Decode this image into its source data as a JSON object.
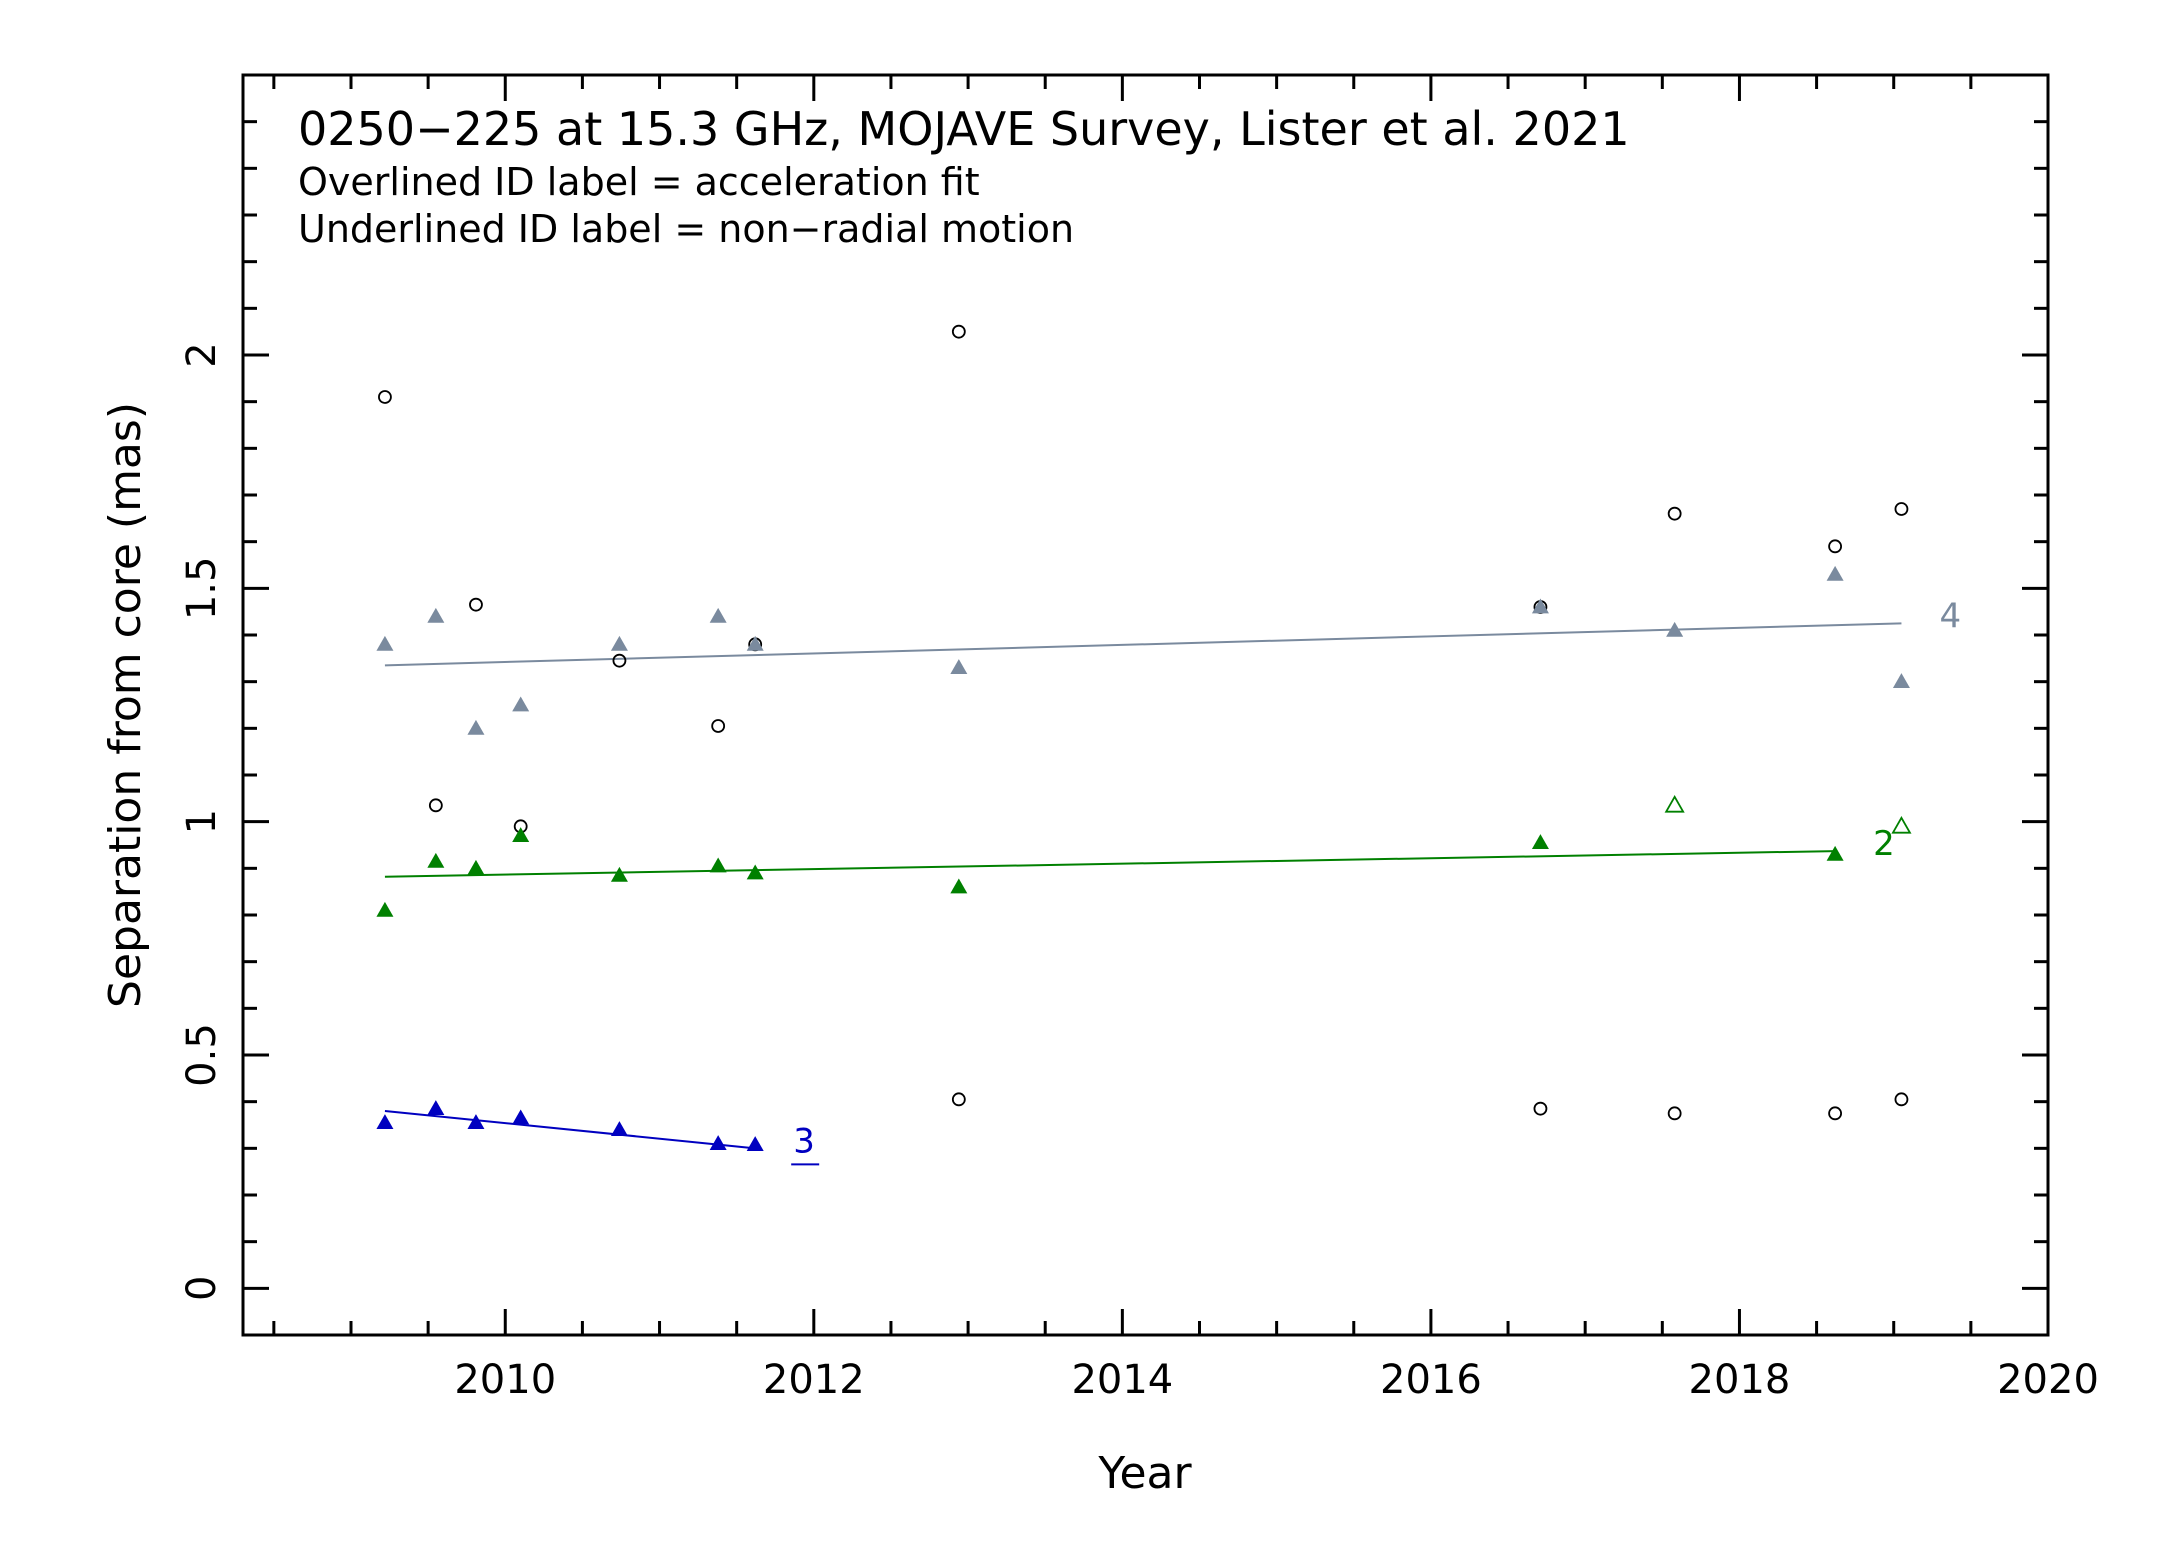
{
  "chart_data": {
    "type": "scatter",
    "title": "0250−225 at 15.3 GHz, MOJAVE Survey, Lister et al. 2021",
    "subtitle_lines": [
      "Overlined ID label = acceleration fit",
      "Underlined ID label = non−radial motion"
    ],
    "xlabel": "Year",
    "ylabel": "Separation from core (mas)",
    "xlim": [
      2008.3,
      2020.0
    ],
    "ylim": [
      -0.1,
      2.6
    ],
    "x_ticks": [
      2010,
      2012,
      2014,
      2016,
      2018,
      2020
    ],
    "y_ticks": [
      0,
      0.5,
      1,
      1.5,
      2
    ],
    "x_tick_labels": [
      "2010",
      "2012",
      "2014",
      "2016",
      "2018",
      "2020"
    ],
    "y_tick_labels": [
      "0",
      "0.5",
      "1",
      "1.5",
      "2"
    ],
    "x_minor_step": 0.5,
    "y_minor_step": 0.1,
    "series": [
      {
        "id": "4",
        "color": "#7a8a9e",
        "marker": "filled-triangle",
        "label_underlined": false,
        "points": [
          {
            "x": 2009.22,
            "y": 1.38
          },
          {
            "x": 2009.55,
            "y": 1.44
          },
          {
            "x": 2009.81,
            "y": 1.2
          },
          {
            "x": 2010.1,
            "y": 1.25
          },
          {
            "x": 2010.74,
            "y": 1.38
          },
          {
            "x": 2011.38,
            "y": 1.44
          },
          {
            "x": 2011.62,
            "y": 1.38
          },
          {
            "x": 2012.94,
            "y": 1.33
          },
          {
            "x": 2016.71,
            "y": 1.46
          },
          {
            "x": 2017.58,
            "y": 1.41
          },
          {
            "x": 2018.62,
            "y": 1.53
          },
          {
            "x": 2019.05,
            "y": 1.3
          }
        ],
        "fit": {
          "x1": 2009.22,
          "y1": 1.335,
          "x2": 2019.05,
          "y2": 1.425
        }
      },
      {
        "id": "2",
        "color": "#008000",
        "marker": "filled-triangle",
        "label_underlined": false,
        "points": [
          {
            "x": 2009.22,
            "y": 0.81
          },
          {
            "x": 2009.55,
            "y": 0.915
          },
          {
            "x": 2009.81,
            "y": 0.9
          },
          {
            "x": 2010.1,
            "y": 0.97
          },
          {
            "x": 2010.74,
            "y": 0.885
          },
          {
            "x": 2011.38,
            "y": 0.905
          },
          {
            "x": 2011.62,
            "y": 0.89
          },
          {
            "x": 2012.94,
            "y": 0.86
          },
          {
            "x": 2016.71,
            "y": 0.955
          },
          {
            "x": 2018.62,
            "y": 0.93
          }
        ],
        "excluded_points": [
          {
            "x": 2017.58,
            "y": 1.035
          },
          {
            "x": 2019.05,
            "y": 0.99
          }
        ],
        "fit": {
          "x1": 2009.22,
          "y1": 0.882,
          "x2": 2018.62,
          "y2": 0.937
        }
      },
      {
        "id": "3",
        "color": "#0000c0",
        "marker": "filled-triangle",
        "label_underlined": true,
        "points": [
          {
            "x": 2009.22,
            "y": 0.355
          },
          {
            "x": 2009.55,
            "y": 0.385
          },
          {
            "x": 2009.81,
            "y": 0.355
          },
          {
            "x": 2010.1,
            "y": 0.365
          },
          {
            "x": 2010.74,
            "y": 0.34
          },
          {
            "x": 2011.38,
            "y": 0.31
          },
          {
            "x": 2011.62,
            "y": 0.308
          }
        ],
        "fit": {
          "x1": 2009.22,
          "y1": 0.38,
          "x2": 2011.62,
          "y2": 0.3
        }
      }
    ],
    "unassigned_points": {
      "color": "#000000",
      "marker": "open-circle",
      "points": [
        {
          "x": 2009.22,
          "y": 1.91
        },
        {
          "x": 2009.55,
          "y": 1.035
        },
        {
          "x": 2009.81,
          "y": 1.465
        },
        {
          "x": 2010.1,
          "y": 0.99
        },
        {
          "x": 2010.74,
          "y": 1.345
        },
        {
          "x": 2011.38,
          "y": 1.205
        },
        {
          "x": 2011.62,
          "y": 1.38
        },
        {
          "x": 2012.94,
          "y": 2.05
        },
        {
          "x": 2012.94,
          "y": 0.405
        },
        {
          "x": 2016.71,
          "y": 1.46
        },
        {
          "x": 2016.71,
          "y": 0.385
        },
        {
          "x": 2017.58,
          "y": 1.66
        },
        {
          "x": 2017.58,
          "y": 0.375
        },
        {
          "x": 2018.62,
          "y": 1.59
        },
        {
          "x": 2018.62,
          "y": 0.375
        },
        {
          "x": 2019.05,
          "y": 1.67
        },
        {
          "x": 2019.05,
          "y": 0.405
        }
      ]
    },
    "grid": false,
    "legend": "none"
  }
}
